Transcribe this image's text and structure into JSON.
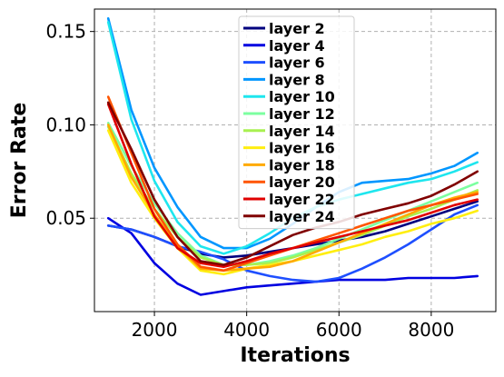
{
  "chart_data": {
    "type": "line",
    "xlabel": "Iterations",
    "ylabel": "Error Rate",
    "xlim": [
      700,
      9400
    ],
    "ylim": [
      0.0,
      0.162
    ],
    "xticks": [
      2000,
      4000,
      6000,
      8000
    ],
    "xtick_labels": [
      "2000",
      "4000",
      "6000",
      "8000"
    ],
    "yticks": [
      0.05,
      0.1,
      0.15
    ],
    "ytick_labels": [
      "0.05",
      "0.10",
      "0.15"
    ],
    "grid": true,
    "legend_position": "top-center",
    "x": [
      1000,
      1500,
      2000,
      2500,
      3000,
      3500,
      4000,
      4500,
      5000,
      5500,
      6000,
      6500,
      7000,
      7500,
      8000,
      8500,
      9000
    ],
    "series": [
      {
        "name": "layer 2",
        "color": "#00007f",
        "values": [
          0.046,
          0.044,
          0.04,
          0.035,
          0.031,
          0.029,
          0.03,
          0.032,
          0.034,
          0.036,
          0.038,
          0.04,
          0.043,
          0.047,
          0.051,
          0.055,
          0.059
        ]
      },
      {
        "name": "layer 4",
        "color": "#0000e0",
        "values": [
          0.05,
          0.042,
          0.026,
          0.015,
          0.009,
          0.011,
          0.013,
          0.014,
          0.015,
          0.016,
          0.017,
          0.017,
          0.017,
          0.018,
          0.018,
          0.018,
          0.019
        ]
      },
      {
        "name": "layer 6",
        "color": "#1e4fff",
        "values": [
          0.046,
          0.044,
          0.04,
          0.035,
          0.032,
          0.028,
          0.022,
          0.019,
          0.017,
          0.016,
          0.018,
          0.023,
          0.029,
          0.036,
          0.044,
          0.052,
          0.057
        ]
      },
      {
        "name": "layer 8",
        "color": "#0096ff",
        "values": [
          0.157,
          0.108,
          0.077,
          0.056,
          0.04,
          0.034,
          0.034,
          0.039,
          0.047,
          0.056,
          0.064,
          0.069,
          0.07,
          0.071,
          0.074,
          0.078,
          0.085
        ]
      },
      {
        "name": "layer 10",
        "color": "#1ee6ee",
        "values": [
          0.155,
          0.103,
          0.07,
          0.048,
          0.035,
          0.031,
          0.035,
          0.042,
          0.05,
          0.056,
          0.06,
          0.063,
          0.066,
          0.069,
          0.071,
          0.075,
          0.08
        ]
      },
      {
        "name": "layer 12",
        "color": "#7cffa0",
        "values": [
          0.101,
          0.078,
          0.058,
          0.042,
          0.03,
          0.025,
          0.025,
          0.027,
          0.03,
          0.034,
          0.039,
          0.044,
          0.049,
          0.054,
          0.059,
          0.064,
          0.069
        ]
      },
      {
        "name": "layer 14",
        "color": "#a8f050",
        "values": [
          0.099,
          0.074,
          0.055,
          0.04,
          0.029,
          0.025,
          0.025,
          0.026,
          0.029,
          0.033,
          0.037,
          0.041,
          0.046,
          0.051,
          0.055,
          0.06,
          0.065
        ]
      },
      {
        "name": "layer 16",
        "color": "#ffee10",
        "values": [
          0.097,
          0.069,
          0.05,
          0.034,
          0.022,
          0.02,
          0.023,
          0.025,
          0.027,
          0.03,
          0.033,
          0.036,
          0.04,
          0.043,
          0.047,
          0.05,
          0.054
        ]
      },
      {
        "name": "layer 18",
        "color": "#ffaa00",
        "values": [
          0.1,
          0.072,
          0.052,
          0.035,
          0.023,
          0.022,
          0.023,
          0.024,
          0.027,
          0.032,
          0.037,
          0.042,
          0.047,
          0.052,
          0.057,
          0.061,
          0.064
        ]
      },
      {
        "name": "layer 20",
        "color": "#ff5500",
        "values": [
          0.115,
          0.085,
          0.055,
          0.036,
          0.024,
          0.022,
          0.026,
          0.03,
          0.034,
          0.038,
          0.042,
          0.046,
          0.05,
          0.054,
          0.057,
          0.06,
          0.063
        ]
      },
      {
        "name": "layer 22",
        "color": "#e00000",
        "values": [
          0.111,
          0.079,
          0.051,
          0.034,
          0.026,
          0.024,
          0.027,
          0.031,
          0.034,
          0.037,
          0.04,
          0.043,
          0.046,
          0.049,
          0.053,
          0.057,
          0.06
        ]
      },
      {
        "name": "layer 24",
        "color": "#800000",
        "values": [
          0.112,
          0.087,
          0.06,
          0.04,
          0.027,
          0.025,
          0.029,
          0.035,
          0.041,
          0.045,
          0.048,
          0.052,
          0.055,
          0.058,
          0.062,
          0.068,
          0.075
        ]
      }
    ]
  }
}
